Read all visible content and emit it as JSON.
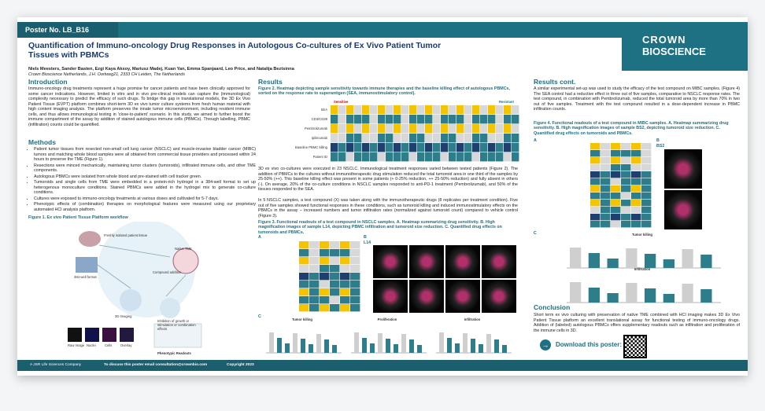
{
  "header": {
    "poster_no": "Poster No. LB_B16",
    "title": "Quantification of Immuno-oncology Drug Responses in Autologous Co-cultures of Ex Vivo Patient Tumor Tissues with PBMCs",
    "authors": "Niels Meesters, Sander Basten, Ezgi Kaya Aksoy, Mariusz Madej, Kuan Yan, Emma Spanjaard, Leo Price, and Natalija Beztsinna",
    "affiliation": "Crown Bioscience Netherlands, J.H. Oortweg21, 2333 CH Leiden, The Netherlands",
    "logo_top": "CROWN",
    "logo_bottom": "BIOSCIENCE"
  },
  "introduction": {
    "heading": "Introduction",
    "text": "Immuno-oncology drug treatments represent a huge promise for cancer patients and have been clinically approved for some cancer indications. However, limited in vitro and in vivo pre-clinical models can capture the (immunological) complexity necessary to predict the efficacy of such drugs. To bridge this gap in translational models, the 3D Ex Vivo Patient Tissue (EVPT) platform combines short-term 3D ex vivo tumor culture systems from fresh human material with high content imaging analysis. The platform preserves the innate tumor microenvironment, including resident immune cells, and thus allows immunological testing in 'close-to-patient' scenario. In this study, we aimed to further boost the immune compartment of the assay by addition of stained autologous immune cells (PBMCs). Through labelling, PBMC (infiltration) counts could be quantified."
  },
  "methods": {
    "heading": "Methods",
    "bullets": [
      "Patient tumor tissues from resected non-small cell lung cancer (NSCLC) and muscle-invasive bladder cancer (MIBC) tumors and matching whole blood samples were all obtained from commercial tissue providers and processed within 24 hours to preserve the TME (Figure 1).",
      "Resections were minced mechanically, maintaining tumor clusters (tumoroids), infiltrated immune cells, and other TME components.",
      "Autologous PBMCs were isolated from whole blood and pre-stained with cell tracker green.",
      "Tumoroids and single cells from TME were embedded in a protein-rich hydrogel in a 384-well format to set up heterogenous monoculture conditions. Stained PBMCs were added in the hydrogel mix to generate co-culture conditions.",
      "Cultures were exposed to immuno-oncology treatments at various doses and cultivated for 5-7 days.",
      "Phenotypic effects of (combination) therapies on morphological features were measured using our proprietary automated HCI analysis platform."
    ]
  },
  "figure1": {
    "caption": "Figure 1. Ex vivo Patient Tissue Platform workflow",
    "labels": [
      "Freshly isolated patient tissue",
      "Native TME",
      "384-well format",
      "Compound addition",
      "3D Imaging",
      "Inhibition of growth or stimulation or combination effects",
      "Phenotypic Readouts",
      "Raw Image",
      "Nuclei",
      "Cells",
      "Overlay"
    ]
  },
  "results": {
    "heading": "Results",
    "figure2_caption": "Figure 2. Heatmap depicting sample sensitivity towards immune therapies and the baseline killing effect of autologous PBMCs, sorted on the response rate to superantigen (SEA, immunostimulatory control).",
    "figure2_labels": {
      "sensitive": "Sensitive",
      "resistant": "Resistant",
      "rows": [
        "SEA",
        "CD3/CD28",
        "Pembrolizumab",
        "Ipilimumab",
        "Baseline PBMC killing",
        "Patient ID"
      ]
    },
    "paragraph1": "3D ex vivo co-cultures were executed in 23 NSCLC. Immunological treatment responses varied between tested patients (Figure 2). The addition of PBMCs to the cultures without immunotherapeutic drug stimulation reduced the total tumoroid area in one third of the samples by 25-50% (++). This baseline killing effect was present in some patients (+ 0-25% reduction, ++ 25-50% reduction) and fully absent in others (-). On average, 20% of the co-culture conditions in NSCLC samples responded to anti-PD-1 treatment (Pembrolizumab), and 50% of the tissues responded to the SEA.",
    "paragraph2": "In 5 NSCLC samples, a test compound (X) was taken along with the immunotherapeutic drugs (8 replicates per treatment condition). Five out of five samples showed functional responses in these conditions, such as tumoroid killing and induced immunostimulatory effects on the PBMCs in the assay – increased numbers and tumor infiltration rates (normalized against tumoroid count) compared to vehicle control (Figure 3).",
    "figure3_caption": "Figure 3. Functional readouts of a test compound in NSCLC samples. A. Heatmap summarizing drug sensitivity. B. High magnification images of sample L14, depicting PBMC infiltration and tumoroid size reduction. C. Quantified drug effects on tumoroids and PBMCs.",
    "figure3_labels": {
      "a": "A",
      "b": "B",
      "c": "C",
      "sample": "L14",
      "c_titles": [
        "Tumor killing",
        "Proliferation",
        "Infiltration"
      ]
    }
  },
  "results_cont": {
    "heading": "Results cont.",
    "text": "A similar experimental set-up was used to study the efficacy of the test compound on MIBC samples. (Figure 4) The SEA control had a reductive effect in three out of five samples, comparative to NSCLC response rates. The test compound, in combination with Pembrolizumab, reduced the total tumoroid area by more than 70% in two out of five samples. Treatment with the test compound resulted in a dose-dependent increase in PBMC infiltration counts.",
    "figure4_caption": "Figure 4. Functional readouts of a test compound in MIBC samples. A. Heatmap summarizing drug sensitivity. B. High magnification images of sample BS2, depicting tumoroid size reduction. C. Quantified drug effects on tumoroids and PBMCs.",
    "figure4_labels": {
      "a": "A",
      "b": "B",
      "c": "C",
      "sample": "BS2",
      "c_titles": [
        "Tumor killing",
        "Infiltration"
      ]
    }
  },
  "conclusion": {
    "heading": "Conclusion",
    "text": "Short term ex vivo culturing with preservation of native TME combined with HCI imaging makes 3D Ex Vivo Patient Tissue platform an excellent translational assay for functional testing of immuno-oncology drugs. Addition of (labeled) autologous PBMCs offers supplementary readouts such as infiltration and proliferation of the immune cells in 3D.",
    "download": "Download this poster:"
  },
  "footer": {
    "company": "A JSR Life Sciences Company",
    "contact": "To discuss this poster email consultation@crownbio.com",
    "copyright": "Copyright 2023"
  }
}
